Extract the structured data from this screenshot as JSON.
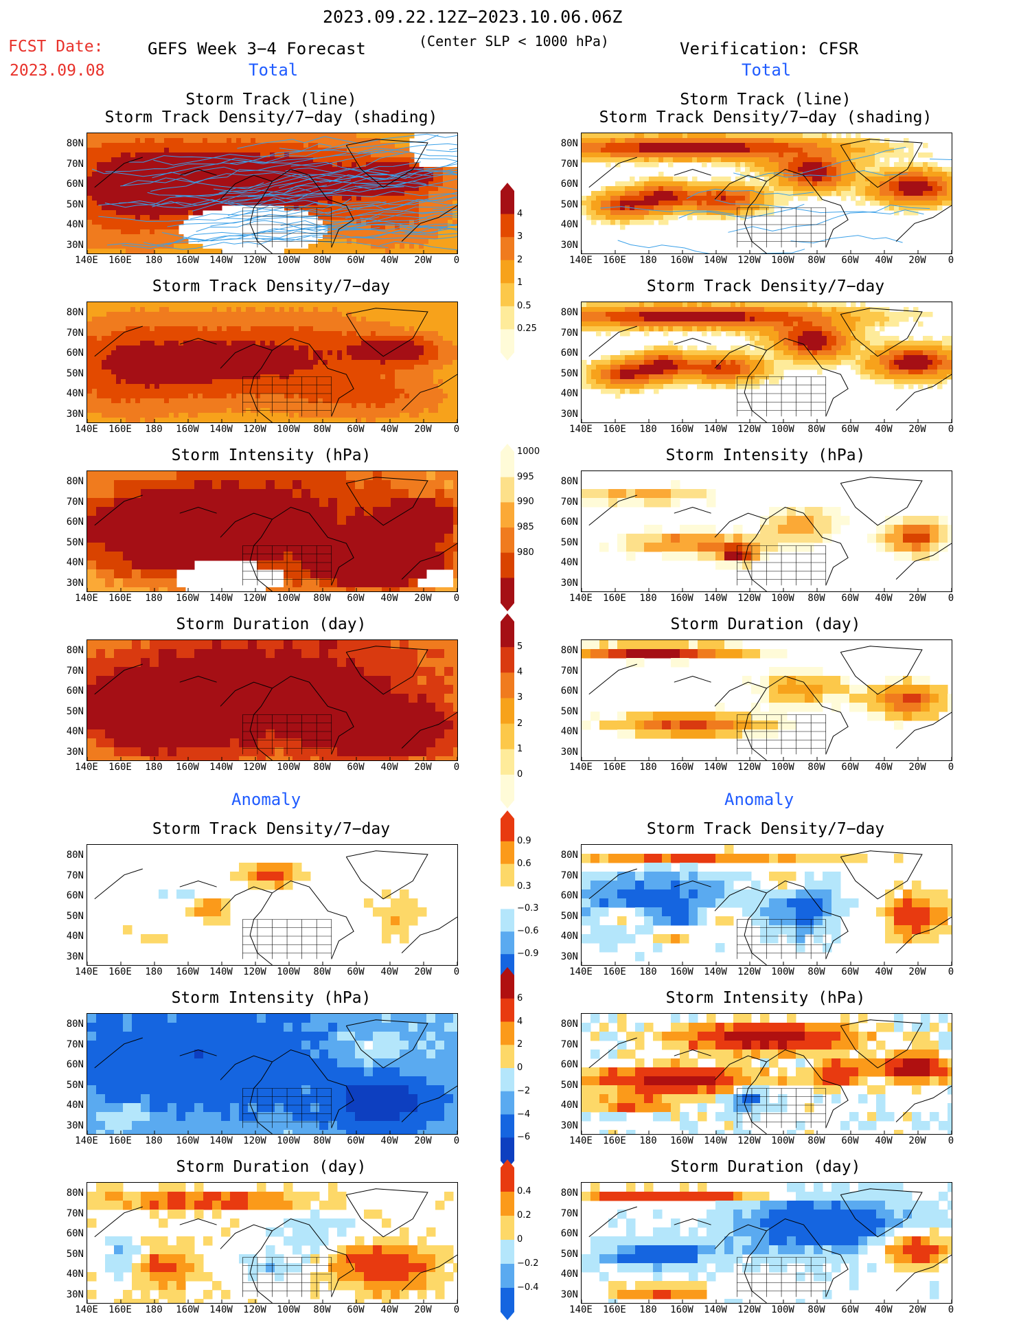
{
  "header": {
    "date_range": "2023.09.22.12Z−2023.10.06.06Z",
    "fcst_label": "FCST Date:",
    "fcst_date": "2023.09.08",
    "forecast_title": "GEFS Week 3−4 Forecast",
    "subtitle": "(Center SLP < 1000 hPa)",
    "verification": "Verification: CFSR",
    "total_left": "Total",
    "total_right": "Total",
    "anomaly_left": "Anomaly",
    "anomaly_right": "Anomaly"
  },
  "titles": {
    "track_line": "Storm Track (line)",
    "track_shading": "Storm Track Density/7−day (shading)",
    "density": "Storm Track Density/7−day",
    "intensity": "Storm Intensity (hPa)",
    "duration": "Storm Duration (day)"
  },
  "axes": {
    "lat_labels": [
      "80N",
      "70N",
      "60N",
      "50N",
      "40N",
      "30N"
    ],
    "lon_labels": [
      "140E",
      "160E",
      "180",
      "160W",
      "140W",
      "120W",
      "100W",
      "80W",
      "60W",
      "40W",
      "20W",
      "0"
    ]
  },
  "colorbars": {
    "density_total": {
      "labels": [
        "4",
        "3",
        "2",
        "1",
        "0.5",
        "0.25"
      ],
      "colors": [
        "#a50f15",
        "#e34a00",
        "#f07b1e",
        "#f7a21b",
        "#fcc84a",
        "#feeb9a",
        "#fffbd8"
      ]
    },
    "intensity_total": {
      "labels": [
        "1000",
        "995",
        "990",
        "985",
        "980"
      ],
      "colors": [
        "#fffbd8",
        "#fde08a",
        "#fba936",
        "#f07b1e",
        "#d94300",
        "#a50f15"
      ]
    },
    "duration_total": {
      "labels": [
        "5",
        "4",
        "3",
        "2",
        "1",
        "0"
      ],
      "colors": [
        "#a50f15",
        "#d93a10",
        "#f07b1e",
        "#f7a21b",
        "#fcc84a",
        "#feeb9a",
        "#fffbd8"
      ]
    },
    "density_anom": {
      "labels": [
        "0.9",
        "0.6",
        "0.3",
        "−0.3",
        "−0.6",
        "−0.9"
      ],
      "colors": [
        "#e83a10",
        "#fb9a1a",
        "#fdd868",
        "#ffffff",
        "#b4e6fb",
        "#5aaaf0",
        "#1565e0"
      ]
    },
    "intensity_anom": {
      "labels": [
        "6",
        "4",
        "2",
        "0",
        "−2",
        "−4",
        "−6"
      ],
      "colors": [
        "#b01010",
        "#e83a10",
        "#fb9a1a",
        "#fdd868",
        "#b4e6fb",
        "#5aaaf0",
        "#1565e0",
        "#0d3fc0"
      ]
    },
    "duration_anom": {
      "labels": [
        "0.4",
        "0.2",
        "0",
        "−0.2",
        "−0.4"
      ],
      "colors": [
        "#e83a10",
        "#fb9a1a",
        "#fdd868",
        "#b4e6fb",
        "#5aaaf0",
        "#1565e0"
      ]
    }
  }
}
